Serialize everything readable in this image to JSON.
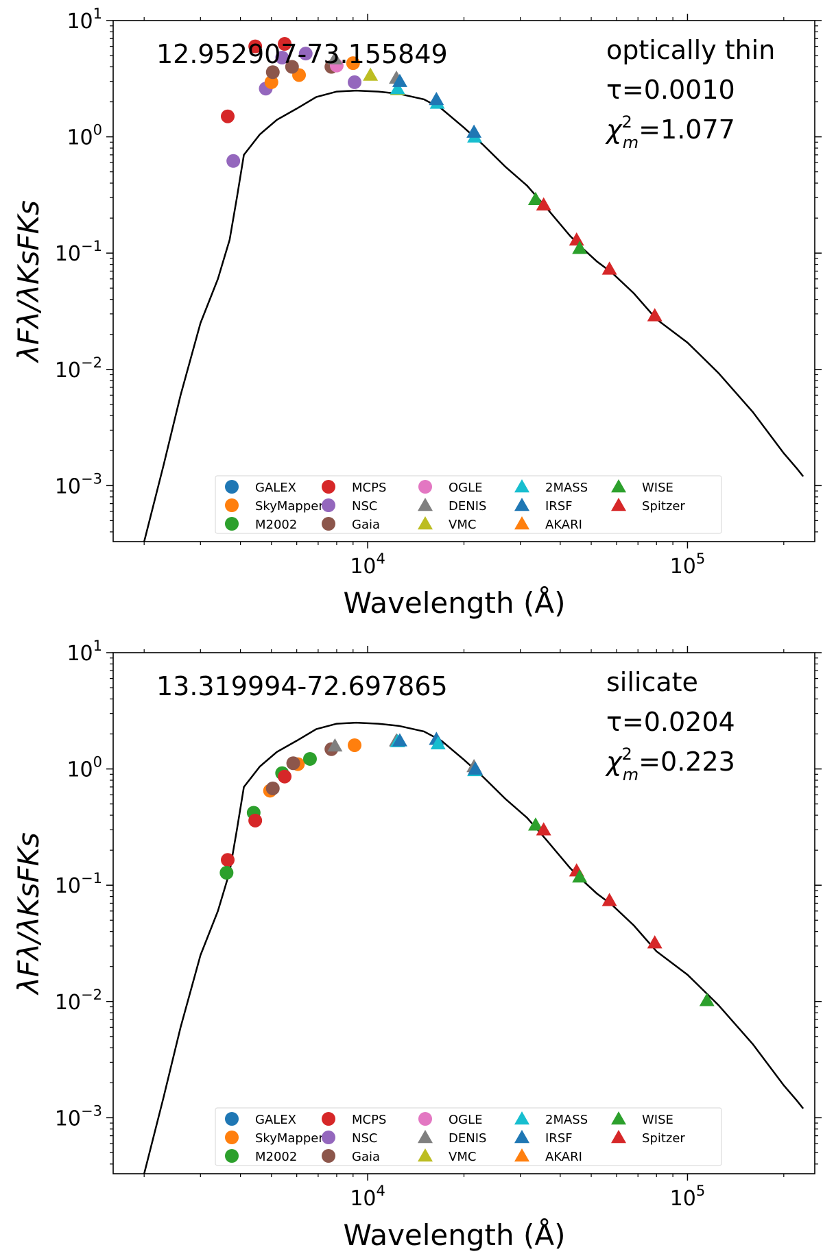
{
  "legend_entries": [
    {
      "label": "GALEX",
      "marker": "circle",
      "color": "#1f77b4"
    },
    {
      "label": "SkyMapper",
      "marker": "circle",
      "color": "#ff7f0e"
    },
    {
      "label": "M2002",
      "marker": "circle",
      "color": "#2ca02c"
    },
    {
      "label": "MCPS",
      "marker": "circle",
      "color": "#d62728"
    },
    {
      "label": "NSC",
      "marker": "circle",
      "color": "#9467bd"
    },
    {
      "label": "Gaia",
      "marker": "circle",
      "color": "#8c564b"
    },
    {
      "label": "OGLE",
      "marker": "circle",
      "color": "#e377c2"
    },
    {
      "label": "DENIS",
      "marker": "triangle",
      "color": "#7f7f7f"
    },
    {
      "label": "VMC",
      "marker": "triangle",
      "color": "#bcbd22"
    },
    {
      "label": "2MASS",
      "marker": "triangle",
      "color": "#17becf"
    },
    {
      "label": "IRSF",
      "marker": "triangle",
      "color": "#1f77b4"
    },
    {
      "label": "AKARI",
      "marker": "triangle",
      "color": "#ff7f0e"
    },
    {
      "label": "WISE",
      "marker": "triangle",
      "color": "#2ca02c"
    },
    {
      "label": "Spitzer",
      "marker": "triangle",
      "color": "#d62728"
    }
  ],
  "chart_data": [
    {
      "type": "scatter",
      "title": "12.952907-73.155849",
      "dust_type": "optically thin",
      "tau_text": "τ=0.0010",
      "chi_prefix": "χ",
      "chi_sup": "2",
      "chi_sub": "m",
      "chi_value": "=1.077",
      "xlabel": "Wavelength (Å)",
      "ylabel": "λFλ/λKsFKs",
      "xscale": "log",
      "yscale": "log",
      "xlim": [
        1600,
        250000
      ],
      "ylim": [
        0.00033,
        10
      ],
      "x_ticks": [
        {
          "value": 10000,
          "base": "10",
          "exp": "4"
        },
        {
          "value": 100000,
          "base": "10",
          "exp": "5"
        }
      ],
      "y_ticks": [
        {
          "value": 10,
          "base": "10",
          "exp": "1"
        },
        {
          "value": 1,
          "base": "10",
          "exp": "0"
        },
        {
          "value": 0.1,
          "base": "10",
          "exp": "−1"
        },
        {
          "value": 0.01,
          "base": "10",
          "exp": "−2"
        },
        {
          "value": 0.001,
          "base": "10",
          "exp": "−3"
        }
      ],
      "model_curve": [
        [
          2000,
          0.00033
        ],
        [
          2300,
          0.0015
        ],
        [
          2600,
          0.006
        ],
        [
          3000,
          0.025
        ],
        [
          3400,
          0.06
        ],
        [
          3700,
          0.13
        ],
        [
          3900,
          0.3
        ],
        [
          4100,
          0.7
        ],
        [
          4600,
          1.05
        ],
        [
          5200,
          1.4
        ],
        [
          6000,
          1.75
        ],
        [
          6900,
          2.2
        ],
        [
          8000,
          2.45
        ],
        [
          9200,
          2.5
        ],
        [
          10800,
          2.45
        ],
        [
          12500,
          2.35
        ],
        [
          15000,
          2.1
        ],
        [
          17000,
          1.75
        ],
        [
          20000,
          1.2
        ],
        [
          23000,
          0.85
        ],
        [
          27000,
          0.55
        ],
        [
          31500,
          0.38
        ],
        [
          36000,
          0.25
        ],
        [
          43000,
          0.14
        ],
        [
          47000,
          0.11
        ],
        [
          52000,
          0.085
        ],
        [
          58000,
          0.068
        ],
        [
          68000,
          0.045
        ],
        [
          80000,
          0.027
        ],
        [
          100000,
          0.017
        ],
        [
          125000,
          0.0093
        ],
        [
          160000,
          0.0043
        ],
        [
          200000,
          0.0019
        ],
        [
          220000,
          0.0014
        ],
        [
          230000,
          0.0012
        ]
      ],
      "points": [
        {
          "survey": "MCPS",
          "x": 4450,
          "y": 6.0
        },
        {
          "survey": "MCPS",
          "x": 5500,
          "y": 6.3
        },
        {
          "survey": "MCPS",
          "x": 3650,
          "y": 1.5
        },
        {
          "survey": "NSC",
          "x": 3800,
          "y": 0.62
        },
        {
          "survey": "NSC",
          "x": 4800,
          "y": 2.6
        },
        {
          "survey": "NSC",
          "x": 5400,
          "y": 4.8
        },
        {
          "survey": "NSC",
          "x": 6400,
          "y": 5.2
        },
        {
          "survey": "NSC",
          "x": 9100,
          "y": 2.95
        },
        {
          "survey": "SkyMapper",
          "x": 5000,
          "y": 2.95
        },
        {
          "survey": "SkyMapper",
          "x": 6100,
          "y": 3.4
        },
        {
          "survey": "SkyMapper",
          "x": 9000,
          "y": 4.3
        },
        {
          "survey": "Gaia",
          "x": 5050,
          "y": 3.6
        },
        {
          "survey": "Gaia",
          "x": 5800,
          "y": 4.0
        },
        {
          "survey": "Gaia",
          "x": 7700,
          "y": 4.0
        },
        {
          "survey": "OGLE",
          "x": 8000,
          "y": 4.1
        },
        {
          "survey": "DENIS",
          "x": 7900,
          "y": 4.7
        },
        {
          "survey": "DENIS",
          "x": 12300,
          "y": 3.2
        },
        {
          "survey": "VMC",
          "x": 10200,
          "y": 3.4
        },
        {
          "survey": "VMC",
          "x": 12400,
          "y": 2.55
        },
        {
          "survey": "2MASS",
          "x": 12400,
          "y": 2.6
        },
        {
          "survey": "IRSF",
          "x": 12600,
          "y": 3.0
        },
        {
          "survey": "2MASS",
          "x": 16500,
          "y": 1.95
        },
        {
          "survey": "IRSF",
          "x": 16400,
          "y": 2.1
        },
        {
          "survey": "2MASS",
          "x": 21600,
          "y": 1.0
        },
        {
          "survey": "IRSF",
          "x": 21500,
          "y": 1.1
        },
        {
          "survey": "WISE",
          "x": 33500,
          "y": 0.29
        },
        {
          "survey": "Spitzer",
          "x": 35500,
          "y": 0.26
        },
        {
          "survey": "Spitzer",
          "x": 45000,
          "y": 0.13
        },
        {
          "survey": "WISE",
          "x": 46000,
          "y": 0.11
        },
        {
          "survey": "Spitzer",
          "x": 57000,
          "y": 0.073
        },
        {
          "survey": "Spitzer",
          "x": 79000,
          "y": 0.029
        }
      ]
    },
    {
      "type": "scatter",
      "title": "13.319994-72.697865",
      "dust_type": "silicate",
      "tau_text": "τ=0.0204",
      "chi_prefix": "χ",
      "chi_sup": "2",
      "chi_sub": "m",
      "chi_value": "=0.223",
      "xlabel": "Wavelength (Å)",
      "ylabel": "λFλ/λKsFKs",
      "xscale": "log",
      "yscale": "log",
      "xlim": [
        1600,
        250000
      ],
      "ylim": [
        0.00033,
        10
      ],
      "x_ticks": [
        {
          "value": 10000,
          "base": "10",
          "exp": "4"
        },
        {
          "value": 100000,
          "base": "10",
          "exp": "5"
        }
      ],
      "y_ticks": [
        {
          "value": 10,
          "base": "10",
          "exp": "1"
        },
        {
          "value": 1,
          "base": "10",
          "exp": "0"
        },
        {
          "value": 0.1,
          "base": "10",
          "exp": "−1"
        },
        {
          "value": 0.01,
          "base": "10",
          "exp": "−2"
        },
        {
          "value": 0.001,
          "base": "10",
          "exp": "−3"
        }
      ],
      "model_curve": [
        [
          2000,
          0.00033
        ],
        [
          2300,
          0.0015
        ],
        [
          2600,
          0.006
        ],
        [
          3000,
          0.025
        ],
        [
          3400,
          0.06
        ],
        [
          3700,
          0.13
        ],
        [
          3900,
          0.3
        ],
        [
          4100,
          0.7
        ],
        [
          4600,
          1.05
        ],
        [
          5200,
          1.4
        ],
        [
          6000,
          1.75
        ],
        [
          6900,
          2.2
        ],
        [
          8000,
          2.45
        ],
        [
          9200,
          2.5
        ],
        [
          10800,
          2.45
        ],
        [
          12500,
          2.35
        ],
        [
          15000,
          2.1
        ],
        [
          17000,
          1.75
        ],
        [
          20000,
          1.2
        ],
        [
          23000,
          0.85
        ],
        [
          27000,
          0.55
        ],
        [
          31500,
          0.38
        ],
        [
          36000,
          0.25
        ],
        [
          43000,
          0.14
        ],
        [
          47000,
          0.11
        ],
        [
          52000,
          0.085
        ],
        [
          58000,
          0.068
        ],
        [
          68000,
          0.045
        ],
        [
          80000,
          0.027
        ],
        [
          100000,
          0.017
        ],
        [
          125000,
          0.0093
        ],
        [
          160000,
          0.0043
        ],
        [
          200000,
          0.0019
        ],
        [
          220000,
          0.0014
        ],
        [
          230000,
          0.0012
        ]
      ],
      "points": [
        {
          "survey": "MCPS",
          "x": 3650,
          "y": 0.165
        },
        {
          "survey": "M2002",
          "x": 3620,
          "y": 0.128
        },
        {
          "survey": "M2002",
          "x": 4400,
          "y": 0.42
        },
        {
          "survey": "MCPS",
          "x": 4450,
          "y": 0.36
        },
        {
          "survey": "SkyMapper",
          "x": 4950,
          "y": 0.65
        },
        {
          "survey": "Gaia",
          "x": 5050,
          "y": 0.68
        },
        {
          "survey": "M2002",
          "x": 5400,
          "y": 0.92
        },
        {
          "survey": "MCPS",
          "x": 5500,
          "y": 0.86
        },
        {
          "survey": "SkyMapper",
          "x": 6050,
          "y": 1.1
        },
        {
          "survey": "Gaia",
          "x": 5850,
          "y": 1.12
        },
        {
          "survey": "M2002",
          "x": 6600,
          "y": 1.22
        },
        {
          "survey": "Gaia",
          "x": 7700,
          "y": 1.48
        },
        {
          "survey": "DENIS",
          "x": 7900,
          "y": 1.58
        },
        {
          "survey": "SkyMapper",
          "x": 9100,
          "y": 1.6
        },
        {
          "survey": "DENIS",
          "x": 12300,
          "y": 1.75
        },
        {
          "survey": "2MASS",
          "x": 12400,
          "y": 1.72
        },
        {
          "survey": "IRSF",
          "x": 12600,
          "y": 1.75
        },
        {
          "survey": "IRSF",
          "x": 16400,
          "y": 1.8
        },
        {
          "survey": "2MASS",
          "x": 16600,
          "y": 1.65
        },
        {
          "survey": "DENIS",
          "x": 21500,
          "y": 1.05
        },
        {
          "survey": "2MASS",
          "x": 21600,
          "y": 0.97
        },
        {
          "survey": "IRSF",
          "x": 21700,
          "y": 1.0
        },
        {
          "survey": "WISE",
          "x": 33500,
          "y": 0.33
        },
        {
          "survey": "Spitzer",
          "x": 35500,
          "y": 0.3
        },
        {
          "survey": "Spitzer",
          "x": 45000,
          "y": 0.133
        },
        {
          "survey": "WISE",
          "x": 46000,
          "y": 0.118
        },
        {
          "survey": "Spitzer",
          "x": 57000,
          "y": 0.074
        },
        {
          "survey": "Spitzer",
          "x": 79000,
          "y": 0.032
        },
        {
          "survey": "WISE",
          "x": 115000,
          "y": 0.0102
        }
      ]
    }
  ]
}
